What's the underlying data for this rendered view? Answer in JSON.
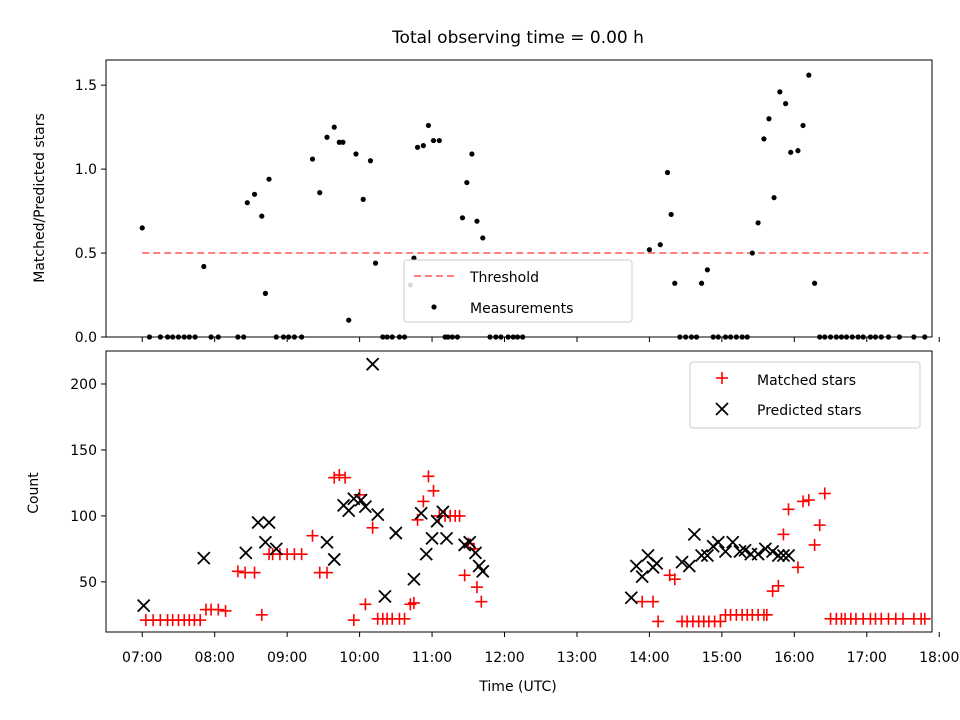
{
  "chart_data": [
    {
      "type": "scatter",
      "title": "Total observing time = 0.00 h",
      "xlabel": "",
      "ylabel": "Matched/Predicted stars",
      "xlim": [
        -0.5,
        10.9
      ],
      "ylim": [
        0,
        1.65
      ],
      "yticks": [
        0.0,
        0.5,
        1.0,
        1.5
      ],
      "ytick_labels": [
        "0.0",
        "0.5",
        "1.0",
        "1.5"
      ],
      "legend": {
        "placement": "lower-center",
        "entries": [
          {
            "label": "Threshold",
            "style": "dashed-line",
            "color": "#ff7f7f"
          },
          {
            "label": "Measurements",
            "style": "dot",
            "color": "#000000"
          }
        ]
      },
      "threshold": {
        "name": "Threshold",
        "value": 0.5,
        "x_range": [
          0.0,
          10.85
        ],
        "color": "#ff7f7f"
      },
      "series": [
        {
          "name": "Measurements",
          "color": "#000000",
          "x": [
            0.0,
            0.1,
            0.25,
            0.35,
            0.42,
            0.5,
            0.58,
            0.65,
            0.73,
            0.85,
            0.95,
            1.05,
            1.32,
            1.4,
            1.45,
            1.55,
            1.65,
            1.7,
            1.75,
            1.85,
            1.95,
            2.02,
            2.1,
            2.2,
            2.35,
            2.45,
            2.55,
            2.65,
            2.72,
            2.77,
            2.85,
            2.95,
            3.05,
            3.15,
            3.22,
            3.32,
            3.38,
            3.45,
            3.55,
            3.62,
            3.7,
            3.75,
            3.8,
            3.88,
            3.95,
            4.02,
            4.1,
            4.18,
            4.22,
            4.28,
            4.35,
            4.42,
            4.48,
            4.55,
            4.62,
            4.7,
            4.8,
            4.88,
            4.95,
            5.05,
            5.12,
            5.18,
            5.25,
            7.0,
            7.15,
            7.25,
            7.3,
            7.35,
            7.42,
            7.5,
            7.58,
            7.65,
            7.72,
            7.8,
            7.88,
            7.95,
            8.05,
            8.12,
            8.2,
            8.28,
            8.35,
            8.42,
            8.5,
            8.58,
            8.65,
            8.72,
            8.8,
            8.88,
            8.95,
            9.05,
            9.12,
            9.2,
            9.28,
            9.35,
            9.42,
            9.5,
            9.58,
            9.65,
            9.72,
            9.8,
            9.88,
            9.95,
            10.05,
            10.12,
            10.2,
            10.3,
            10.45,
            10.65,
            10.8
          ],
          "y": [
            0.65,
            0.0,
            0.0,
            0.0,
            0.0,
            0.0,
            0.0,
            0.0,
            0.0,
            0.42,
            0.0,
            0.0,
            0.0,
            0.0,
            0.8,
            0.85,
            0.72,
            0.26,
            0.94,
            0.0,
            0.0,
            0.0,
            0.0,
            0.0,
            1.06,
            0.86,
            1.19,
            1.25,
            1.16,
            1.16,
            0.1,
            1.09,
            0.82,
            1.05,
            0.44,
            0.0,
            0.0,
            0.0,
            0.0,
            0.0,
            0.31,
            0.47,
            1.13,
            1.14,
            1.26,
            1.17,
            1.17,
            0.0,
            0.0,
            0.0,
            0.0,
            0.71,
            0.92,
            1.09,
            0.69,
            0.59,
            0.0,
            0.0,
            0.0,
            0.0,
            0.0,
            0.0,
            0.0,
            0.52,
            0.55,
            0.98,
            0.73,
            0.32,
            0.0,
            0.0,
            0.0,
            0.0,
            0.32,
            0.4,
            0.0,
            0.0,
            0.0,
            0.0,
            0.0,
            0.0,
            0.0,
            0.5,
            0.68,
            1.18,
            1.3,
            0.83,
            1.46,
            1.39,
            1.1,
            1.11,
            1.26,
            1.56,
            0.32,
            0.0,
            0.0,
            0.0,
            0.0,
            0.0,
            0.0,
            0.0,
            0.0,
            0.0,
            0.0,
            0.0,
            0.0,
            0.0,
            0.0,
            0.0,
            0.0
          ]
        }
      ]
    },
    {
      "type": "scatter",
      "title": "",
      "xlabel": "Time (UTC)",
      "ylabel": "Count",
      "xlim": [
        -0.5,
        10.9
      ],
      "ylim": [
        12,
        225
      ],
      "yticks": [
        50,
        100,
        150,
        200
      ],
      "ytick_labels": [
        "50",
        "100",
        "150",
        "200"
      ],
      "xticks": [
        0,
        1,
        2,
        3,
        4,
        5,
        6,
        7,
        8,
        9,
        10,
        11
      ],
      "xtick_labels": [
        "07:00",
        "08:00",
        "09:00",
        "10:00",
        "11:00",
        "12:00",
        "13:00",
        "14:00",
        "15:00",
        "16:00",
        "17:00",
        "18:00"
      ],
      "legend": {
        "placement": "upper-right",
        "entries": [
          {
            "label": "Matched stars",
            "style": "plus",
            "color": "#ff0000"
          },
          {
            "label": "Predicted stars",
            "style": "x",
            "color": "#000000"
          }
        ]
      },
      "series": [
        {
          "name": "Matched stars",
          "marker": "plus",
          "color": "#ff0000",
          "x": [
            0.05,
            0.15,
            0.25,
            0.35,
            0.42,
            0.5,
            0.58,
            0.65,
            0.72,
            0.8,
            0.88,
            0.95,
            1.05,
            1.15,
            1.32,
            1.42,
            1.55,
            1.65,
            1.75,
            1.8,
            1.9,
            2.0,
            2.1,
            2.2,
            2.35,
            2.45,
            2.55,
            2.65,
            2.72,
            2.8,
            2.92,
            3.0,
            3.08,
            3.18,
            3.25,
            3.32,
            3.38,
            3.45,
            3.55,
            3.62,
            3.7,
            3.75,
            3.8,
            3.88,
            3.95,
            4.02,
            4.1,
            4.18,
            4.25,
            4.32,
            4.38,
            4.45,
            4.5,
            4.58,
            4.62,
            4.68,
            6.9,
            7.05,
            7.12,
            7.28,
            7.35,
            7.45,
            7.52,
            7.6,
            7.68,
            7.75,
            7.82,
            7.9,
            7.98,
            8.05,
            8.12,
            8.2,
            8.28,
            8.35,
            8.42,
            8.5,
            8.58,
            8.62,
            8.7,
            8.78,
            8.85,
            8.92,
            9.05,
            9.12,
            9.2,
            9.28,
            9.35,
            9.42,
            9.5,
            9.58,
            9.65,
            9.7,
            9.78,
            9.85,
            9.95,
            10.05,
            10.12,
            10.2,
            10.3,
            10.4,
            10.5,
            10.65,
            10.75,
            10.8
          ],
          "y": [
            21,
            21,
            21,
            21,
            21,
            21,
            21,
            21,
            21,
            21,
            29,
            29,
            29,
            28,
            58,
            57,
            57,
            25,
            71,
            71,
            71,
            71,
            71,
            71,
            85,
            57,
            57,
            129,
            131,
            129,
            21,
            116,
            33,
            91,
            22,
            22,
            22,
            22,
            22,
            22,
            33,
            34,
            97,
            111,
            130,
            119,
            100,
            100,
            100,
            100,
            100,
            55,
            79,
            75,
            46,
            35,
            35,
            35,
            20,
            55,
            52,
            20,
            20,
            20,
            20,
            20,
            20,
            20,
            20,
            25,
            25,
            25,
            25,
            25,
            25,
            25,
            25,
            25,
            43,
            47,
            86,
            105,
            61,
            111,
            112,
            78,
            93,
            117,
            22,
            22,
            22,
            22,
            22,
            22,
            22,
            22,
            22,
            22,
            22,
            22,
            22,
            22,
            22,
            22
          ]
        },
        {
          "name": "Predicted stars",
          "marker": "x",
          "color": "#000000",
          "x": [
            0.02,
            0.85,
            1.43,
            1.6,
            1.7,
            1.75,
            1.85,
            2.55,
            2.65,
            2.78,
            2.85,
            2.92,
            3.02,
            3.08,
            3.18,
            3.25,
            3.35,
            3.5,
            3.75,
            3.85,
            3.92,
            4.0,
            4.07,
            4.15,
            4.2,
            4.45,
            4.52,
            4.6,
            4.65,
            4.7,
            6.75,
            6.82,
            6.9,
            6.98,
            7.05,
            7.1,
            7.45,
            7.55,
            7.62,
            7.72,
            7.8,
            7.88,
            7.95,
            8.05,
            8.15,
            8.25,
            8.32,
            8.4,
            8.5,
            8.6,
            8.7,
            8.78,
            8.85,
            8.92
          ],
          "y": [
            32,
            68,
            72,
            95,
            80,
            95,
            75,
            80,
            67,
            108,
            104,
            113,
            112,
            107,
            215,
            101,
            39,
            87,
            52,
            102,
            71,
            83,
            96,
            103,
            83,
            78,
            80,
            72,
            62,
            58,
            38,
            62,
            54,
            70,
            61,
            64,
            65,
            62,
            86,
            70,
            70,
            77,
            80,
            73,
            80,
            73,
            74,
            71,
            71,
            75,
            73,
            70,
            70,
            70
          ]
        }
      ]
    }
  ]
}
